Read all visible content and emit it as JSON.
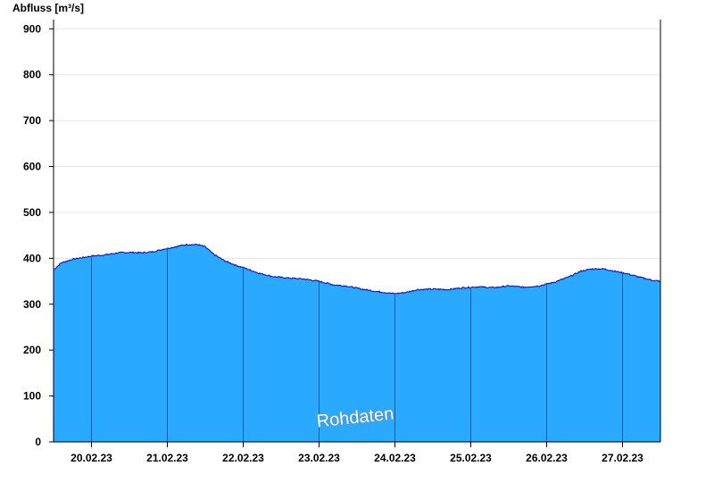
{
  "chart_data": {
    "type": "area",
    "ylabel": "Abfluss [m³/s]",
    "ylim": [
      0,
      920
    ],
    "yticks": [
      0,
      100,
      200,
      300,
      400,
      500,
      600,
      700,
      800,
      900
    ],
    "xlim_days": [
      19.5,
      27.5
    ],
    "day_labels": [
      "20.02.23",
      "21.02.23",
      "22.02.23",
      "23.02.23",
      "24.02.23",
      "25.02.23",
      "26.02.23",
      "27.02.23"
    ],
    "grid": "horizontal",
    "watermark": "Rohdaten",
    "colors": {
      "fill": "#29a9ff",
      "line": "#0000cc",
      "separator": "#1d5fa0",
      "grid": "#e6e6e6"
    },
    "series": [
      {
        "x_days": [
          19.5,
          19.6,
          19.75,
          19.9,
          20.0,
          20.2,
          20.35,
          20.5,
          20.65,
          20.8,
          20.95,
          21.1,
          21.25,
          21.4,
          21.5,
          21.6,
          21.75,
          21.9,
          22.0,
          22.2,
          22.4,
          22.6,
          22.8,
          23.0,
          23.2,
          23.35,
          23.5,
          23.6,
          23.75,
          23.9,
          24.0,
          24.15,
          24.3,
          24.5,
          24.7,
          24.9,
          25.1,
          25.3,
          25.5,
          25.7,
          25.9,
          26.1,
          26.3,
          26.45,
          26.6,
          26.75,
          26.9,
          27.05,
          27.2,
          27.4,
          27.5
        ],
        "y": [
          375,
          390,
          398,
          402,
          405,
          408,
          412,
          413,
          412,
          414,
          420,
          425,
          430,
          430,
          425,
          410,
          395,
          385,
          380,
          368,
          360,
          357,
          355,
          350,
          342,
          340,
          335,
          332,
          328,
          325,
          323,
          326,
          332,
          333,
          332,
          336,
          338,
          336,
          340,
          337,
          340,
          348,
          360,
          372,
          377,
          377,
          372,
          367,
          360,
          352,
          350
        ]
      }
    ]
  }
}
